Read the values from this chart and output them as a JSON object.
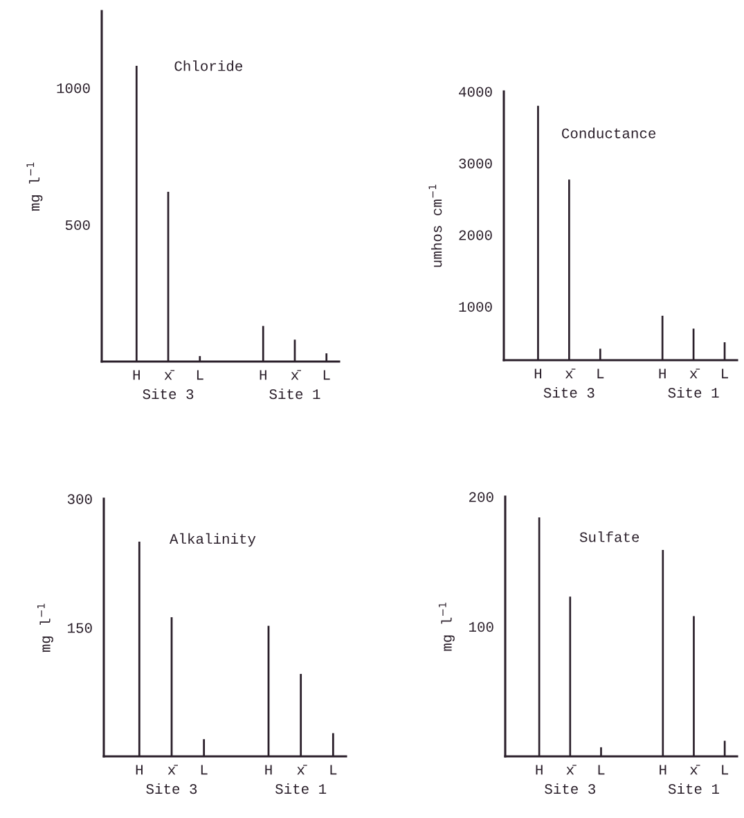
{
  "chart_data": [
    {
      "type": "bar",
      "title": "Chloride",
      "ylabel": "mg l$^{−1}$",
      "categories": [
        "H",
        "x̄",
        "L",
        null,
        "H",
        "x̄",
        "L"
      ],
      "values": [
        1080,
        620,
        20,
        null,
        130,
        80,
        30
      ],
      "color": "#2a1f2a",
      "ylim": [
        0,
        1280
      ],
      "yticks": [
        500,
        1000
      ],
      "annotations": [
        "Site 3",
        "Site 1"
      ]
    },
    {
      "type": "bar",
      "title": "Conductance",
      "ylabel": "umhos cm$^{−1}$",
      "categories": [
        "H",
        "x̄",
        "L",
        null,
        "H",
        "x̄",
        "L"
      ],
      "values": [
        3800,
        2770,
        410,
        null,
        870,
        690,
        500
      ],
      "color": "#2a1f2a",
      "ylim": [
        250,
        4000
      ],
      "yticks": [
        1000,
        2000,
        3000,
        4000
      ],
      "annotations": [
        "Site 3",
        "Site 1"
      ]
    },
    {
      "type": "bar",
      "title": "Alkalinity",
      "ylabel": "mg l$^{−1}$",
      "categories": [
        "H",
        "x̄",
        "L",
        null,
        "H",
        "x̄",
        "L"
      ],
      "values": [
        250,
        162,
        20,
        null,
        152,
        96,
        27
      ],
      "color": "#2a1f2a",
      "ylim": [
        0,
        300
      ],
      "yticks": [
        150,
        300
      ],
      "annotations": [
        "Site 3",
        "Site 1"
      ]
    },
    {
      "type": "bar",
      "title": "Sulfate",
      "ylabel": "mg l$^{−1}$",
      "categories": [
        "H",
        "x̄",
        "L",
        null,
        "H",
        "x̄",
        "L"
      ],
      "values": [
        184,
        123,
        7,
        null,
        159,
        108,
        12
      ],
      "color": "#2a1f2a",
      "ylim": [
        0,
        200
      ],
      "yticks": [
        100,
        200
      ],
      "annotations": [
        "Site 3",
        "Site 1"
      ]
    }
  ]
}
